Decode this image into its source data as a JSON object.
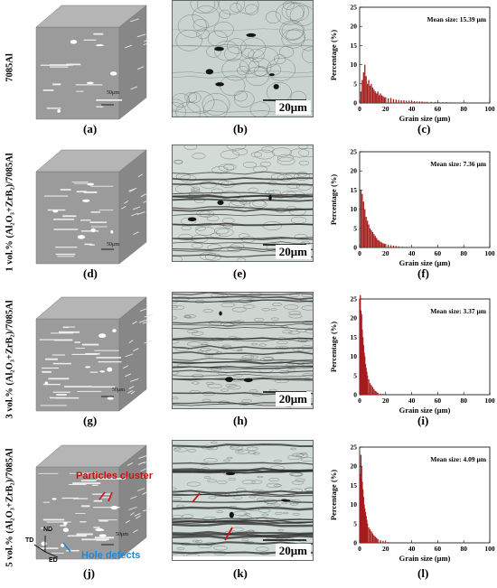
{
  "figure": {
    "rows": [
      {
        "label": "7085Al",
        "panels": [
          "(a)",
          "(b)",
          "(c)"
        ],
        "cube_scale": "50μm",
        "micro_scale": "20μm",
        "mean_size": "Mean size: 15.39 μm",
        "chart_data": {
          "type": "bar",
          "xlabel": "Grain size (μm)",
          "ylabel": "Percentage (%)",
          "xlim": [
            0,
            100
          ],
          "ylim": [
            0,
            25
          ],
          "xticks": [
            0,
            20,
            40,
            60,
            80,
            100
          ],
          "yticks": [
            0,
            5,
            10,
            15,
            20,
            25
          ],
          "x": [
            1,
            2,
            3,
            4,
            5,
            6,
            7,
            8,
            9,
            10,
            11,
            12,
            13,
            14,
            15,
            16,
            17,
            18,
            19,
            20,
            22,
            24,
            26,
            28,
            30,
            32,
            34,
            36,
            38,
            40,
            42,
            44,
            46,
            48,
            50,
            52,
            55,
            58,
            61,
            64,
            67,
            70,
            73,
            76,
            80,
            84,
            88
          ],
          "values": [
            3,
            6,
            8,
            10,
            7,
            5,
            6,
            4.5,
            5,
            4,
            3.5,
            3,
            2.5,
            3,
            2,
            2.5,
            2,
            1.8,
            1.5,
            1.5,
            1.2,
            1.3,
            1,
            0.9,
            0.8,
            0.7,
            0.7,
            0.6,
            0.6,
            0.5,
            0.5,
            0.4,
            0.4,
            0.4,
            0.3,
            0.3,
            0.3,
            0.25,
            0.2,
            0.2,
            0.2,
            0.15,
            0.15,
            0.1,
            0.1,
            0.1,
            0.1
          ]
        }
      },
      {
        "label": "1 vol.% (Al₂O₃+ZrB₂)/7085Al",
        "panels": [
          "(d)",
          "(e)",
          "(f)"
        ],
        "cube_scale": "50μm",
        "micro_scale": "20μm",
        "mean_size": "Mean size: 7.36 μm",
        "chart_data": {
          "type": "bar",
          "xlabel": "Grain size (μm)",
          "ylabel": "Percentage (%)",
          "xlim": [
            0,
            100
          ],
          "ylim": [
            0,
            25
          ],
          "xticks": [
            0,
            20,
            40,
            60,
            80,
            100
          ],
          "yticks": [
            0,
            5,
            10,
            15,
            20,
            25
          ],
          "x": [
            1,
            2,
            3,
            4,
            5,
            6,
            7,
            8,
            9,
            10,
            11,
            12,
            13,
            14,
            15,
            16,
            17,
            18,
            19,
            20,
            22,
            24,
            26,
            28,
            30,
            33,
            36,
            40
          ],
          "values": [
            15,
            14,
            12,
            10,
            8,
            7,
            6,
            5,
            4.5,
            4,
            3.5,
            3,
            2.5,
            2,
            1.8,
            1.5,
            1.3,
            1.1,
            1,
            0.9,
            0.7,
            0.6,
            0.5,
            0.4,
            0.3,
            0.2,
            0.15,
            0.1
          ]
        }
      },
      {
        "label": "3 vol.% (Al₂O₃+ZrB₂)/7085Al",
        "panels": [
          "(g)",
          "(h)",
          "(i)"
        ],
        "cube_scale": "50μm",
        "micro_scale": "20μm",
        "mean_size": "Mean size: 3.37 μm",
        "chart_data": {
          "type": "bar",
          "xlabel": "Grain size (μm)",
          "ylabel": "Percentage (%)",
          "xlim": [
            0,
            100
          ],
          "ylim": [
            0,
            25
          ],
          "xticks": [
            0,
            20,
            40,
            60,
            80,
            100
          ],
          "yticks": [
            0,
            5,
            10,
            15,
            20,
            25
          ],
          "x": [
            0.5,
            1,
            1.5,
            2,
            2.5,
            3,
            3.5,
            4,
            4.5,
            5,
            5.5,
            6,
            7,
            8,
            9,
            10,
            11,
            12,
            13,
            14,
            16,
            18
          ],
          "values": [
            26,
            22,
            21,
            17,
            15,
            13,
            11,
            10,
            8,
            7,
            6,
            5,
            4,
            3,
            2.5,
            2,
            1.5,
            1,
            0.8,
            0.5,
            0.3,
            0.2
          ]
        }
      },
      {
        "label": "5 vol.% (Al₂O₃+ZrB₂)/7085Al",
        "panels": [
          "(j)",
          "(k)",
          "(l)"
        ],
        "cube_scale": "50μm",
        "micro_scale": "20μm",
        "mean_size": "Mean size: 4.09 μm",
        "chart_data": {
          "type": "bar",
          "xlabel": "Grain size (μm)",
          "ylabel": "Percentage (%)",
          "xlim": [
            0,
            100
          ],
          "ylim": [
            0,
            25
          ],
          "xticks": [
            0,
            20,
            40,
            60,
            80,
            100
          ],
          "yticks": [
            0,
            5,
            10,
            15,
            20,
            25
          ],
          "x": [
            0.5,
            1,
            1.5,
            2,
            2.5,
            3,
            3.5,
            4,
            4.5,
            5,
            5.5,
            6,
            7,
            8,
            9,
            10,
            11,
            12,
            13,
            14,
            16,
            18,
            20,
            22
          ],
          "values": [
            18,
            23,
            20,
            16,
            14,
            12,
            10,
            9,
            8,
            7,
            6,
            5,
            4,
            3.5,
            3,
            2.5,
            2,
            1.6,
            1.3,
            1,
            0.7,
            0.5,
            0.3,
            0.2
          ]
        }
      }
    ],
    "annotations": {
      "particles_cluster": "Particles cluster",
      "hole_defects": "Hole defects",
      "axis_nd": "ND",
      "axis_td": "TD",
      "axis_ed": "ED"
    },
    "colors": {
      "bar": "#a51c1c",
      "red_annot": "#cc1111",
      "blue_annot": "#1e88d8"
    }
  }
}
